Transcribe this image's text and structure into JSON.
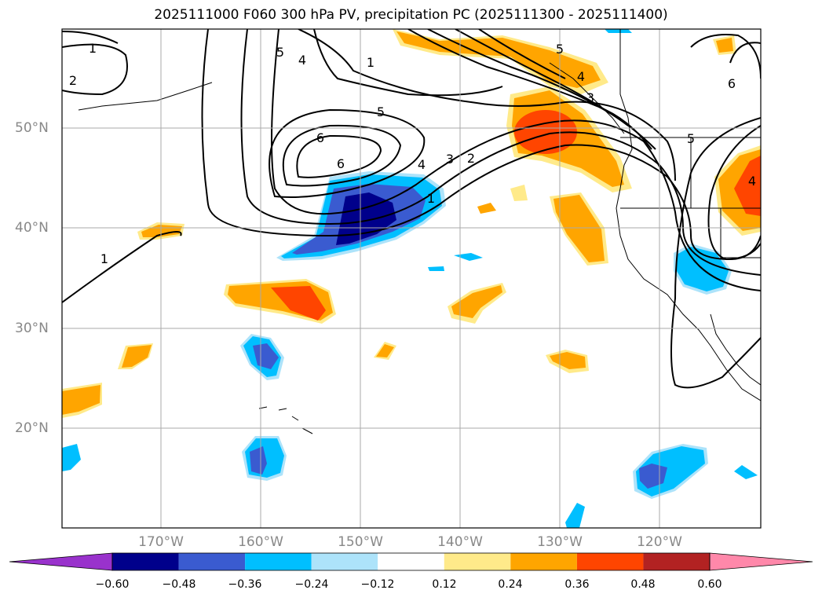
{
  "title": "2025111000 F060 300 hPa PV, precipitation PC (2025111300 - 2025111400)",
  "lat_labels": [
    "50°N",
    "40°N",
    "30°N",
    "20°N"
  ],
  "lon_labels": [
    "170°W",
    "160°W",
    "150°W",
    "140°W",
    "130°W",
    "120°W"
  ],
  "contour_labels": [
    "1",
    "2",
    "5",
    "4",
    "1",
    "5",
    "6",
    "4",
    "3",
    "2",
    "1",
    "1",
    "5",
    "4",
    "3",
    "6",
    "4",
    "5",
    "6"
  ],
  "colorbar": {
    "colors": [
      "#9932CC",
      "#00008B",
      "#3A5BD0",
      "#00BFFF",
      "#ADE3FA",
      "#FFFFFF",
      "#FFEA8A",
      "#FFA500",
      "#FF4500",
      "#B22222",
      "#FF88AA"
    ],
    "tick_labels": [
      "−0.60",
      "−0.48",
      "−0.36",
      "−0.24",
      "−0.12",
      "0.12",
      "0.24",
      "0.36",
      "0.48",
      "0.60"
    ]
  },
  "legend": {
    "pv_contours": "300 hPa PV",
    "shading": "precipitation PC"
  }
}
